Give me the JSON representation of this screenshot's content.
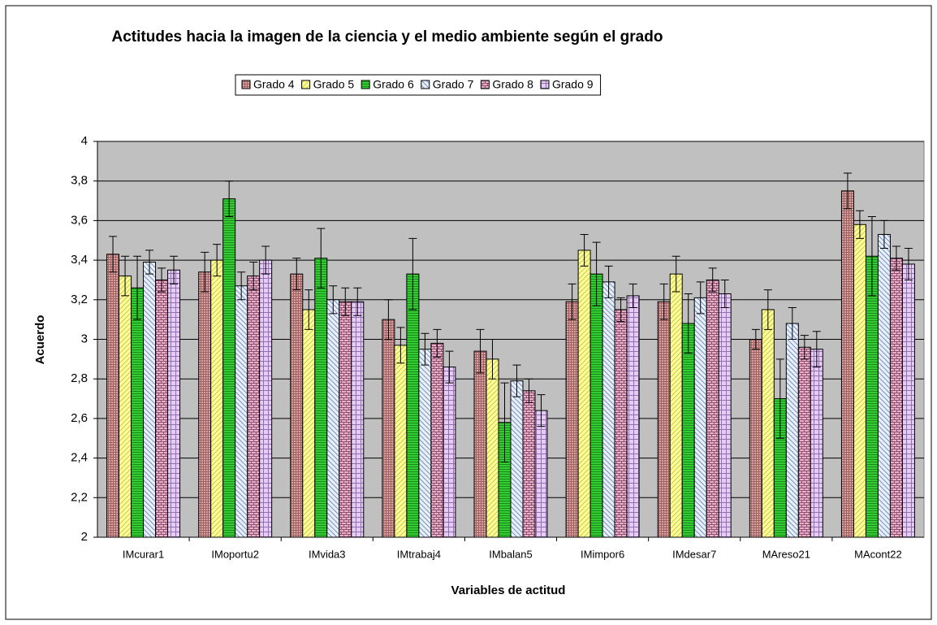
{
  "chart_data": {
    "type": "bar",
    "title": "Actitudes hacia la imagen de la ciencia y el medio ambiente según el grado",
    "x_label": "Variables de actitud",
    "y_label": "Acuerdo",
    "categories": [
      "IMcurar1",
      "IMoportu2",
      "IMvida3",
      "IMtrabaj4",
      "IMbalan5",
      "IMimpor6",
      "IMdesar7",
      "MAreso21",
      "MAcont22"
    ],
    "series": [
      {
        "name": "Grado 4",
        "color": "#d4a4a4",
        "values": [
          3.43,
          3.34,
          3.33,
          3.1,
          2.94,
          3.19,
          3.19,
          3.0,
          3.75
        ],
        "errors": [
          0.09,
          0.1,
          0.08,
          0.1,
          0.11,
          0.09,
          0.09,
          0.05,
          0.09
        ]
      },
      {
        "name": "Grado 5",
        "color": "#ffff99",
        "values": [
          3.32,
          3.4,
          3.15,
          2.97,
          2.9,
          3.45,
          3.33,
          3.15,
          3.58
        ],
        "errors": [
          0.1,
          0.08,
          0.1,
          0.09,
          0.1,
          0.08,
          0.09,
          0.1,
          0.07
        ]
      },
      {
        "name": "Grado 6",
        "color": "#33cc33",
        "values": [
          3.26,
          3.71,
          3.41,
          3.33,
          2.58,
          3.33,
          3.08,
          2.7,
          3.42
        ],
        "errors": [
          0.16,
          0.09,
          0.15,
          0.18,
          0.2,
          0.16,
          0.15,
          0.2,
          0.2
        ]
      },
      {
        "name": "Grado 7",
        "color": "#e6f0ff",
        "values": [
          3.39,
          3.27,
          3.2,
          2.95,
          2.79,
          3.29,
          3.21,
          3.08,
          3.53
        ],
        "errors": [
          0.06,
          0.07,
          0.07,
          0.08,
          0.08,
          0.08,
          0.08,
          0.08,
          0.07
        ]
      },
      {
        "name": "Grado 8",
        "color": "#e8b0c8",
        "values": [
          3.3,
          3.32,
          3.19,
          2.98,
          2.74,
          3.15,
          3.3,
          2.96,
          3.41
        ],
        "errors": [
          0.06,
          0.07,
          0.07,
          0.07,
          0.06,
          0.06,
          0.06,
          0.06,
          0.06
        ]
      },
      {
        "name": "Grado 9",
        "color": "#e6ccf5",
        "values": [
          3.35,
          3.4,
          3.19,
          2.86,
          2.64,
          3.22,
          3.23,
          2.95,
          3.38
        ],
        "errors": [
          0.07,
          0.07,
          0.07,
          0.08,
          0.08,
          0.06,
          0.07,
          0.09,
          0.08
        ]
      }
    ],
    "ylim": [
      2,
      4
    ],
    "yticks": [
      2,
      {
        "value": 2.2,
        "label": "2,2"
      },
      {
        "value": 2.4,
        "label": "2,4"
      },
      {
        "value": 2.6,
        "label": "2,6"
      },
      {
        "value": 2.8,
        "label": "2,8"
      },
      3,
      {
        "value": 3.2,
        "label": "3,2"
      },
      {
        "value": 3.4,
        "label": "3,4"
      },
      {
        "value": 3.6,
        "label": "3,6"
      },
      {
        "value": 3.8,
        "label": "3,8"
      },
      4
    ],
    "grid": true,
    "legend": "top"
  }
}
